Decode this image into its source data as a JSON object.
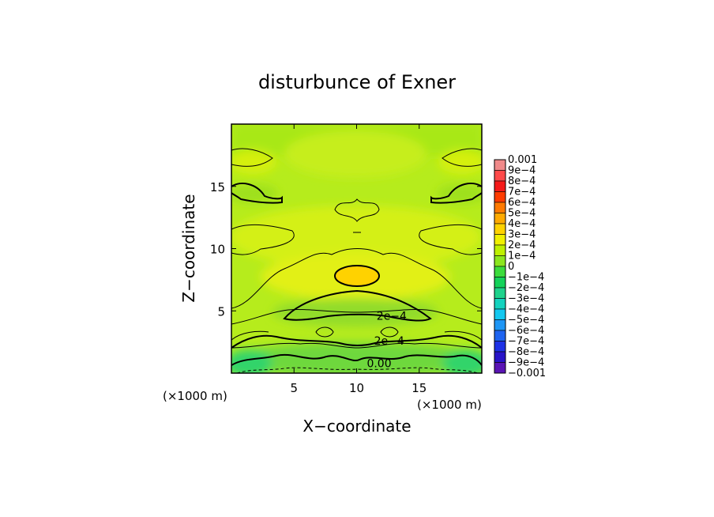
{
  "chart_data": {
    "type": "heatmap",
    "title": "disturbunce of Exner",
    "xlabel": "X−coordinate",
    "ylabel": "Z−coordinate",
    "x_unit_left": "(×1000 m)",
    "x_unit_right": "(×1000 m)",
    "y_unit": "(×1000 m)",
    "xlim": [
      0,
      20
    ],
    "ylim": [
      0,
      20
    ],
    "x_ticks": [
      5,
      10,
      15
    ],
    "y_ticks": [
      5,
      10,
      15
    ],
    "colorbar": {
      "min": -0.001,
      "max": 0.001,
      "labels": [
        "0.001",
        "9e−4",
        "8e−4",
        "7e−4",
        "6e−4",
        "5e−4",
        "4e−4",
        "3e−4",
        "2e−4",
        "1e−4",
        "0",
        "−1e−4",
        "−2e−4",
        "−3e−4",
        "−4e−4",
        "−5e−4",
        "−6e−4",
        "−7e−4",
        "−8e−4",
        "−9e−4",
        "−0.001"
      ],
      "colors": [
        "#f08a8a",
        "#ff4a4a",
        "#f51a1a",
        "#ff3c00",
        "#ff7a00",
        "#ffaa00",
        "#ffd200",
        "#f0f000",
        "#bef000",
        "#8ce61e",
        "#3cdc3c",
        "#14d25a",
        "#1ed28c",
        "#14d2be",
        "#14c8f0",
        "#1e96f5",
        "#1e64f0",
        "#1e32e6",
        "#2814c8",
        "#5a14b4"
      ]
    },
    "contour_labels": [
      {
        "text": "2e−4",
        "x": 12.8,
        "z": 4.6
      },
      {
        "text": "2e−4",
        "x": 12.6,
        "z": 2.6
      },
      {
        "text": "0.00",
        "x": 11.8,
        "z": 0.8
      }
    ]
  }
}
